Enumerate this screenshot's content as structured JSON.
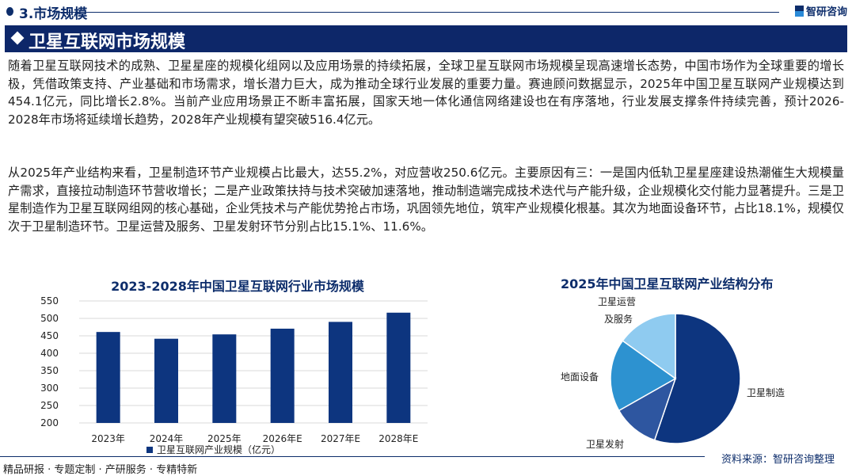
{
  "header": {
    "section": "3.市场规模",
    "logo": "智研咨询"
  },
  "banner": {
    "title": "卫星互联网市场规模"
  },
  "paragraphs": [
    "随着卫星互联网技术的成熟、卫星星座的规模化组网以及应用场景的持续拓展，全球卫星互联网市场规模呈现高速增长态势，中国市场作为全球重要的增长极，凭借政策支持、产业基础和市场需求，增长潜力巨大，成为推动全球行业发展的重要力量。赛迪顾问数据显示，2025年中国卫星互联网产业规模达到454.1亿元，同比增长2.8%。当前产业应用场景正不断丰富拓展，国家天地一体化通信网络建设也在有序落地，行业发展支撑条件持续完善，预计2026-2028年市场将延续增长趋势，2028年产业规模有望突破516.4亿元。",
    "从2025年产业结构来看，卫星制造环节产业规模占比最大，达55.2%，对应营收250.6亿元。主要原因有三：一是国内低轨卫星星座建设热潮催生大规模量产需求，直接拉动制造环节营收增长；二是产业政策扶持与技术突破加速落地，推动制造端完成技术迭代与产能升级，企业规模化交付能力显著提升。三是卫星制造作为卫星互联网组网的核心基础，企业凭技术与产能优势抢占市场，巩固领先地位，筑牢产业规模化根基。其次为地面设备环节，占比18.1%，规模仅次于卫星制造环节。卫星运营及服务、卫星发射环节分别占比15.1%、11.6%。"
  ],
  "chart_data": [
    {
      "type": "bar",
      "title": "2023-2028年中国卫星互联网行业市场规模",
      "categories": [
        "2023年",
        "2024年",
        "2025年",
        "2026年E",
        "2027年E",
        "2028年E"
      ],
      "series": [
        {
          "name": "卫星互联网产业规模（亿元）",
          "values": [
            461,
            441.6,
            454.1,
            470.5,
            490,
            516.4
          ]
        }
      ],
      "ylim": [
        200,
        550
      ],
      "yticks": [
        200,
        250,
        300,
        350,
        400,
        450,
        500,
        550
      ],
      "grid": true,
      "legend": "bottom",
      "color": "#0d357f"
    },
    {
      "type": "pie",
      "title": "2025年中国卫星互联网产业结构分布",
      "labels": [
        "卫星制造",
        "卫星发射",
        "地面设备",
        "卫星运营及服务"
      ],
      "label_lines": [
        [
          "卫星制造"
        ],
        [
          "卫星发射"
        ],
        [
          "地面设备"
        ],
        [
          "卫星运营",
          "及服务"
        ]
      ],
      "values": [
        55.2,
        11.6,
        18.1,
        15.1
      ],
      "colors": [
        "#0d357f",
        "#2e56a0",
        "#2d92d0",
        "#8fcbf0"
      ]
    }
  ],
  "footer": {
    "text": "精品研报 · 专题定制 · 产研服务 · 专精特新",
    "source": "资料来源：智研咨询整理"
  }
}
